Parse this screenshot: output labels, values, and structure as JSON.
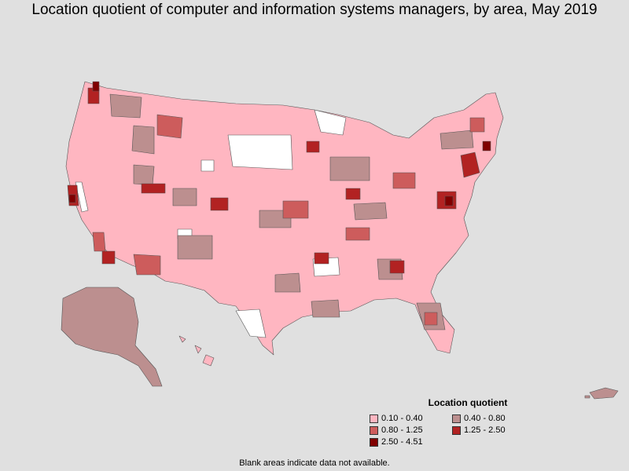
{
  "title": "Location quotient of computer and information systems managers, by area, May 2019",
  "legend": {
    "title": "Location quotient",
    "items": [
      {
        "label": "0.10 - 0.40",
        "color": "#ffb6c1"
      },
      {
        "label": "0.40 - 0.80",
        "color": "#bc8f8f"
      },
      {
        "label": "0.80 - 1.25",
        "color": "#cd5c5c"
      },
      {
        "label": "1.25 - 2.50",
        "color": "#b22222"
      },
      {
        "label": "2.50 - 4.51",
        "color": "#800000"
      }
    ]
  },
  "footnote": "Blank areas indicate data not available.",
  "colors": {
    "background": "#e0e0e0",
    "no_data": "#ffffff",
    "border": "#555555"
  }
}
